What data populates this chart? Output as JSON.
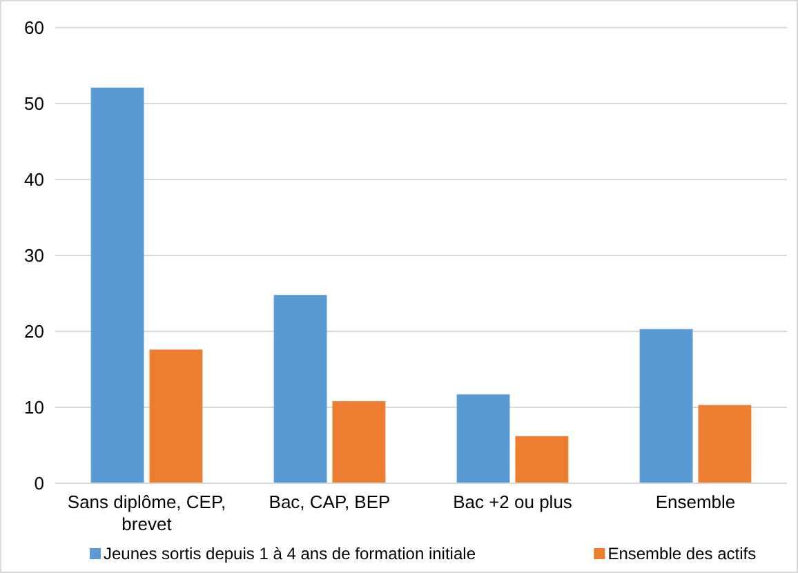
{
  "chart_data": {
    "type": "bar",
    "categories": [
      "Sans diplôme, CEP, brevet",
      "Bac, CAP, BEP",
      "Bac +2 ou plus",
      "Ensemble"
    ],
    "series": [
      {
        "name": "Jeunes sortis depuis 1 à 4 ans de formation initiale",
        "color": "#5b9bd5",
        "values": [
          52.1,
          24.8,
          11.7,
          20.3
        ]
      },
      {
        "name": "Ensemble des actifs",
        "color": "#ed7d31",
        "values": [
          17.6,
          10.8,
          6.2,
          10.3
        ]
      }
    ],
    "ylim": [
      0,
      60
    ],
    "yticks": [
      0,
      10,
      20,
      30,
      40,
      50,
      60
    ],
    "grid": "y",
    "legend": "bottom"
  }
}
